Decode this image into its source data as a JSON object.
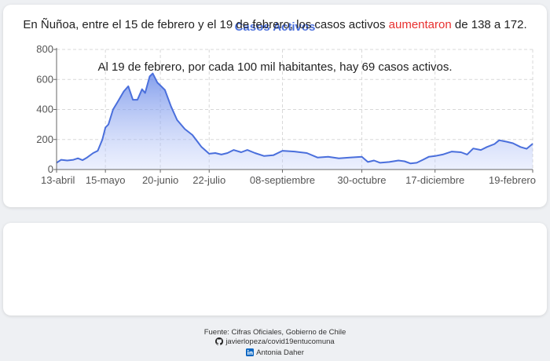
{
  "chart_data": {
    "type": "area",
    "title": "Casos Activos",
    "xlabel": "",
    "ylabel": "",
    "ylim": [
      0,
      800
    ],
    "y_ticks": [
      0,
      200,
      400,
      600,
      800
    ],
    "x_ticks": [
      {
        "label": "13-abril",
        "at": "2020-04-13"
      },
      {
        "label": "15-mayo",
        "at": "2020-05-15"
      },
      {
        "label": "20-junio",
        "at": "2020-06-20"
      },
      {
        "label": "22-julio",
        "at": "2020-07-22"
      },
      {
        "label": "08-septiembre",
        "at": "2020-09-08"
      },
      {
        "label": "30-octubre",
        "at": "2020-10-30"
      },
      {
        "label": "17-diciembre",
        "at": "2020-12-17"
      },
      {
        "label": "19-febrero",
        "at": "2021-02-19"
      }
    ],
    "grid": true,
    "color": "#4a6fdc",
    "series": [
      {
        "points": [
          [
            "2020-04-13",
            45
          ],
          [
            "2020-04-16",
            65
          ],
          [
            "2020-04-20",
            60
          ],
          [
            "2020-04-24",
            65
          ],
          [
            "2020-04-27",
            75
          ],
          [
            "2020-04-30",
            62
          ],
          [
            "2020-05-03",
            80
          ],
          [
            "2020-05-07",
            110
          ],
          [
            "2020-05-10",
            125
          ],
          [
            "2020-05-13",
            200
          ],
          [
            "2020-05-15",
            280
          ],
          [
            "2020-05-17",
            300
          ],
          [
            "2020-05-20",
            400
          ],
          [
            "2020-05-23",
            450
          ],
          [
            "2020-05-27",
            520
          ],
          [
            "2020-05-30",
            555
          ],
          [
            "2020-06-02",
            465
          ],
          [
            "2020-06-05",
            465
          ],
          [
            "2020-06-08",
            535
          ],
          [
            "2020-06-10",
            510
          ],
          [
            "2020-06-13",
            620
          ],
          [
            "2020-06-15",
            640
          ],
          [
            "2020-06-18",
            580
          ],
          [
            "2020-06-20",
            560
          ],
          [
            "2020-06-23",
            530
          ],
          [
            "2020-06-27",
            420
          ],
          [
            "2020-07-01",
            330
          ],
          [
            "2020-07-06",
            270
          ],
          [
            "2020-07-11",
            230
          ],
          [
            "2020-07-17",
            150
          ],
          [
            "2020-07-22",
            105
          ],
          [
            "2020-07-26",
            110
          ],
          [
            "2020-07-30",
            100
          ],
          [
            "2020-08-03",
            110
          ],
          [
            "2020-08-07",
            130
          ],
          [
            "2020-08-12",
            115
          ],
          [
            "2020-08-16",
            130
          ],
          [
            "2020-08-21",
            110
          ],
          [
            "2020-08-27",
            90
          ],
          [
            "2020-09-02",
            95
          ],
          [
            "2020-09-08",
            125
          ],
          [
            "2020-09-16",
            120
          ],
          [
            "2020-09-24",
            110
          ],
          [
            "2020-10-01",
            80
          ],
          [
            "2020-10-08",
            85
          ],
          [
            "2020-10-15",
            75
          ],
          [
            "2020-10-22",
            80
          ],
          [
            "2020-10-30",
            85
          ],
          [
            "2020-11-03",
            50
          ],
          [
            "2020-11-07",
            60
          ],
          [
            "2020-11-11",
            45
          ],
          [
            "2020-11-17",
            50
          ],
          [
            "2020-11-23",
            60
          ],
          [
            "2020-11-27",
            55
          ],
          [
            "2020-12-01",
            40
          ],
          [
            "2020-12-05",
            45
          ],
          [
            "2020-12-09",
            65
          ],
          [
            "2020-12-13",
            85
          ],
          [
            "2020-12-17",
            90
          ],
          [
            "2020-12-22",
            100
          ],
          [
            "2020-12-28",
            120
          ],
          [
            "2021-01-03",
            115
          ],
          [
            "2021-01-07",
            100
          ],
          [
            "2021-01-11",
            140
          ],
          [
            "2021-01-16",
            130
          ],
          [
            "2021-01-20",
            150
          ],
          [
            "2021-01-25",
            170
          ],
          [
            "2021-01-28",
            195
          ],
          [
            "2021-02-02",
            185
          ],
          [
            "2021-02-06",
            175
          ],
          [
            "2021-02-11",
            150
          ],
          [
            "2021-02-15",
            138
          ],
          [
            "2021-02-19",
            172
          ]
        ]
      }
    ]
  },
  "summary": {
    "line1_before": "En Ñuñoa, entre el 15 de febrero y el 19 de febrero, los casos activos ",
    "line1_highlight": "aumentaron",
    "line1_after": " de 138 a 172.",
    "line2": "Al 19 de febrero, por cada 100 mil habitantes, hay 69 casos activos."
  },
  "footer": {
    "source": "Fuente: Cifras Oficiales, Gobierno de Chile",
    "github": "javierlopeza/covid19entucomuna",
    "github_icon": "github-icon",
    "author": "Antonia Daher",
    "author_icon": "linkedin-icon"
  }
}
